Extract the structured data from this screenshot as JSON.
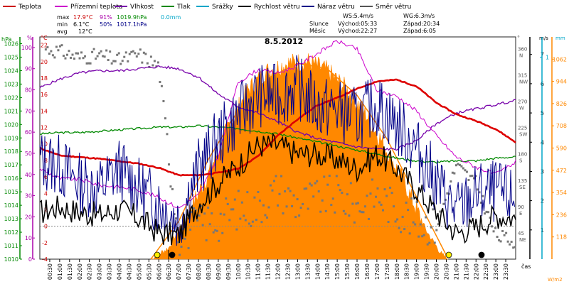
{
  "chart_data": {
    "type": "line",
    "title": "8.5.2012",
    "xlabel": "čas",
    "x_ticks": [
      "00:30",
      "01:00",
      "01:30",
      "02:00",
      "02:30",
      "03:00",
      "03:30",
      "04:00",
      "04:30",
      "05:00",
      "05:30",
      "06:00",
      "06:30",
      "07:00",
      "07:30",
      "08:00",
      "08:30",
      "09:00",
      "09:30",
      "10:00",
      "10:30",
      "11:00",
      "11:30",
      "12:00",
      "12:30",
      "13:00",
      "13:30",
      "14:00",
      "14:30",
      "15:00",
      "15:30",
      "16:00",
      "16:30",
      "17:00",
      "17:30",
      "18:00",
      "18:30",
      "19:00",
      "19:30",
      "20:00",
      "20:30",
      "21:00",
      "21:30",
      "22:00",
      "22:30",
      "23:00",
      "23:30"
    ],
    "axes": {
      "hpa": {
        "label": "hPa",
        "ticks": [
          "1026",
          "1025",
          "1024",
          "1023",
          "1022",
          "1021",
          "1020",
          "1019",
          "1018",
          "1017",
          "1016",
          "1015",
          "1014",
          "1013",
          "1012",
          "1011",
          "1010"
        ],
        "range": [
          1010,
          1026.5
        ],
        "color": "#008800"
      },
      "pct": {
        "label": "%",
        "ticks": [
          "100",
          "90",
          "80",
          "70",
          "60",
          "50",
          "40",
          "30",
          "20",
          "10",
          "0"
        ],
        "range": [
          0,
          105
        ],
        "color": "#aa00aa"
      },
      "temp": {
        "label": "°C",
        "ticks": [
          "22",
          "20",
          "18",
          "16",
          "14",
          "12",
          "10",
          "8",
          "6",
          "4",
          "2",
          "0",
          "-2",
          "-4"
        ],
        "range": [
          -4,
          23
        ],
        "color": "#cc0000"
      },
      "deg": {
        "label": "°",
        "ticks": [
          "360 N",
          "315 NW",
          "270 W",
          "225 SW",
          "180 S",
          "135 SE",
          "90 E",
          "45 NE"
        ],
        "range": [
          0,
          380
        ],
        "color": "#555555"
      },
      "ms": {
        "label": "m/s",
        "ticks": [
          "7",
          "6",
          "5",
          "4",
          "3",
          "2",
          "1"
        ],
        "range": [
          0,
          7.6
        ],
        "color": "#000000"
      },
      "mm": {
        "label": "mm",
        "ticks": [
          "1"
        ],
        "range": [
          0,
          1.1
        ],
        "color": "#00a6c8"
      },
      "wm2": {
        "label": "W/m2",
        "ticks": [
          "1062",
          "944",
          "826",
          "708",
          "590",
          "472",
          "354",
          "236",
          "118"
        ],
        "range": [
          0,
          1180
        ],
        "color": "#ff8800"
      }
    },
    "legend": [
      {
        "name": "Teplota",
        "color": "#cc0000"
      },
      {
        "name": "Přízemní teplota",
        "color": "#cc00cc"
      },
      {
        "name": "Vlhkost",
        "color": "#7700aa"
      },
      {
        "name": "Tlak",
        "color": "#008800"
      },
      {
        "name": "Srážky",
        "color": "#00a6c8"
      },
      {
        "name": "Rychlost větru",
        "color": "#000000"
      },
      {
        "name": "Náraz větru",
        "color": "#000088"
      },
      {
        "name": "Směr větru",
        "color": "#555555"
      }
    ],
    "stats": {
      "max": {
        "label": "max",
        "temp": "17.9°C",
        "hum": "91%",
        "press": "1019.9hPa",
        "rain": "0.0mm"
      },
      "min": {
        "label": "min",
        "temp": "6.1°C",
        "hum": "50%",
        "press": "1017.1hPa"
      },
      "avg": {
        "label": "avg",
        "temp": "12°C"
      }
    },
    "wind_info": {
      "ws": "WS:5.4m/s",
      "wg": "WG:6.3m/s"
    },
    "sun_info": {
      "label": "Slunce",
      "rise": "Východ:05:33",
      "set": "Západ:20:34"
    },
    "moon_info": {
      "label": "Měsíc",
      "rise": "Východ:22:27",
      "set": "Západ:6:05"
    },
    "series": [
      {
        "name": "Teplota",
        "axis": "temp",
        "points": [
          [
            0,
            9.5
          ],
          [
            1,
            8.6
          ],
          [
            2,
            8.4
          ],
          [
            3,
            8.2
          ],
          [
            4,
            7.9
          ],
          [
            5,
            7.6
          ],
          [
            6,
            7.1
          ],
          [
            7,
            6.2
          ],
          [
            8,
            6.2
          ],
          [
            9,
            6.5
          ],
          [
            10,
            7.0
          ],
          [
            11,
            8.5
          ],
          [
            12,
            11.0
          ],
          [
            13,
            13.0
          ],
          [
            14,
            14.7
          ],
          [
            15,
            15.6
          ],
          [
            16,
            16.7
          ],
          [
            17,
            17.6
          ],
          [
            18,
            17.8
          ],
          [
            19,
            17.0
          ],
          [
            20,
            15.0
          ],
          [
            21,
            13.6
          ],
          [
            22,
            12.8
          ],
          [
            23,
            11.8
          ],
          [
            24,
            10.2
          ]
        ]
      },
      {
        "name": "Přízemní teplota",
        "axis": "temp",
        "points": [
          [
            0,
            7.0
          ],
          [
            1,
            5.8
          ],
          [
            2,
            5.7
          ],
          [
            3,
            5.0
          ],
          [
            4,
            4.8
          ],
          [
            5,
            4.4
          ],
          [
            6,
            3.5
          ],
          [
            7,
            2.2
          ],
          [
            8,
            3.8
          ],
          [
            9,
            8.5
          ],
          [
            10,
            17.5
          ],
          [
            11,
            19.0
          ],
          [
            12,
            18.6
          ],
          [
            13,
            19.5
          ],
          [
            14,
            21.0
          ],
          [
            15,
            22.5
          ],
          [
            16,
            21.5
          ],
          [
            17,
            16.5
          ],
          [
            18,
            15.8
          ],
          [
            19,
            14.0
          ],
          [
            20,
            11.0
          ],
          [
            21,
            8.4
          ],
          [
            22,
            7.2
          ],
          [
            23,
            6.3
          ],
          [
            24,
            7.8
          ]
        ]
      },
      {
        "name": "Vlhkost",
        "axis": "pct",
        "points": [
          [
            0,
            81
          ],
          [
            1,
            85
          ],
          [
            2,
            88
          ],
          [
            3,
            89
          ],
          [
            4,
            89
          ],
          [
            5,
            90
          ],
          [
            6,
            91
          ],
          [
            7,
            90
          ],
          [
            8,
            86
          ],
          [
            9,
            78
          ],
          [
            10,
            72
          ],
          [
            11,
            69
          ],
          [
            12,
            65
          ],
          [
            13,
            60
          ],
          [
            14,
            57
          ],
          [
            15,
            55
          ],
          [
            16,
            53
          ],
          [
            17,
            52
          ],
          [
            18,
            52
          ],
          [
            19,
            56
          ],
          [
            20,
            64
          ],
          [
            21,
            69
          ],
          [
            22,
            71
          ],
          [
            23,
            73
          ],
          [
            24,
            75
          ]
        ]
      },
      {
        "name": "Tlak",
        "axis": "hpa",
        "points": [
          [
            0,
            1019.3
          ],
          [
            1,
            1019.4
          ],
          [
            2,
            1019.4
          ],
          [
            3,
            1019.5
          ],
          [
            4,
            1019.6
          ],
          [
            5,
            1019.7
          ],
          [
            6,
            1019.8
          ],
          [
            7,
            1019.8
          ],
          [
            8,
            1019.9
          ],
          [
            9,
            1019.8
          ],
          [
            10,
            1019.7
          ],
          [
            11,
            1019.5
          ],
          [
            12,
            1019.3
          ],
          [
            13,
            1019.0
          ],
          [
            14,
            1018.7
          ],
          [
            15,
            1018.4
          ],
          [
            16,
            1018.1
          ],
          [
            17,
            1017.8
          ],
          [
            18,
            1017.5
          ],
          [
            19,
            1017.3
          ],
          [
            20,
            1017.2
          ],
          [
            21,
            1017.3
          ],
          [
            22,
            1017.3
          ],
          [
            23,
            1017.5
          ],
          [
            24,
            1017.6
          ]
        ]
      },
      {
        "name": "Rychlost větru",
        "axis": "ms",
        "points": [
          [
            0,
            1.6
          ],
          [
            1,
            1.8
          ],
          [
            2,
            1.6
          ],
          [
            3,
            1.5
          ],
          [
            4,
            1.7
          ],
          [
            5,
            1.4
          ],
          [
            6,
            0.9
          ],
          [
            7,
            0.8
          ],
          [
            8,
            1.9
          ],
          [
            9,
            2.6
          ],
          [
            10,
            3.2
          ],
          [
            11,
            3.9
          ],
          [
            12,
            3.9
          ],
          [
            13,
            3.6
          ],
          [
            14,
            3.6
          ],
          [
            15,
            3.4
          ],
          [
            16,
            3.1
          ],
          [
            17,
            3.6
          ],
          [
            18,
            3.1
          ],
          [
            19,
            2.4
          ],
          [
            20,
            1.6
          ],
          [
            21,
            0.9
          ],
          [
            22,
            1.1
          ],
          [
            23,
            1.5
          ],
          [
            24,
            1.4
          ]
        ]
      },
      {
        "name": "Náraz větru",
        "axis": "ms",
        "points": [
          [
            0,
            3.4
          ],
          [
            1,
            3.2
          ],
          [
            2,
            2.6
          ],
          [
            3,
            2.4
          ],
          [
            4,
            3.1
          ],
          [
            5,
            2.4
          ],
          [
            6,
            1.9
          ],
          [
            7,
            1.3
          ],
          [
            8,
            3.1
          ],
          [
            9,
            4.1
          ],
          [
            10,
            4.9
          ],
          [
            11,
            5.6
          ],
          [
            12,
            5.6
          ],
          [
            13,
            5.9
          ],
          [
            14,
            5.2
          ],
          [
            15,
            5.1
          ],
          [
            16,
            4.8
          ],
          [
            17,
            5.3
          ],
          [
            18,
            4.6
          ],
          [
            19,
            3.8
          ],
          [
            20,
            2.6
          ],
          [
            21,
            1.6
          ],
          [
            22,
            2.2
          ],
          [
            23,
            2.3
          ],
          [
            24,
            2.0
          ]
        ]
      },
      {
        "name": "Směr větru",
        "axis": "deg",
        "points": [
          [
            0,
            362
          ],
          [
            1,
            355
          ],
          [
            2,
            345
          ],
          [
            3,
            348
          ],
          [
            4,
            340
          ],
          [
            5,
            350
          ],
          [
            6,
            330
          ],
          [
            7,
            40
          ],
          [
            8,
            60
          ],
          [
            9,
            65
          ],
          [
            10,
            85
          ],
          [
            11,
            90
          ],
          [
            12,
            120
          ],
          [
            13,
            95
          ],
          [
            14,
            105
          ],
          [
            15,
            110
          ],
          [
            16,
            90
          ],
          [
            17,
            110
          ],
          [
            18,
            85
          ],
          [
            19,
            65
          ],
          [
            20,
            55
          ],
          [
            21,
            160
          ],
          [
            22,
            130
          ],
          [
            23,
            40
          ],
          [
            24,
            30
          ]
        ]
      },
      {
        "name": "Sluneční záření",
        "axis": "wm2",
        "points": [
          [
            5.6,
            0
          ],
          [
            6.5,
            60
          ],
          [
            7.5,
            250
          ],
          [
            8.5,
            450
          ],
          [
            9.5,
            700
          ],
          [
            10.5,
            900
          ],
          [
            11.5,
            1000
          ],
          [
            12.5,
            1040
          ],
          [
            13.5,
            1050
          ],
          [
            14.5,
            1000
          ],
          [
            15.5,
            900
          ],
          [
            16.5,
            760
          ],
          [
            17.5,
            580
          ],
          [
            18.5,
            380
          ],
          [
            19.5,
            150
          ],
          [
            20.3,
            20
          ],
          [
            20.6,
            0
          ]
        ]
      },
      {
        "name": "Teoretické záření",
        "axis": "wm2",
        "points": [
          [
            5.6,
            0
          ],
          [
            7,
            200
          ],
          [
            8.5,
            530
          ],
          [
            10,
            790
          ],
          [
            11.5,
            960
          ],
          [
            13,
            1040
          ],
          [
            14.5,
            1010
          ],
          [
            16,
            870
          ],
          [
            17.5,
            640
          ],
          [
            19,
            330
          ],
          [
            20.6,
            0
          ]
        ]
      }
    ]
  }
}
